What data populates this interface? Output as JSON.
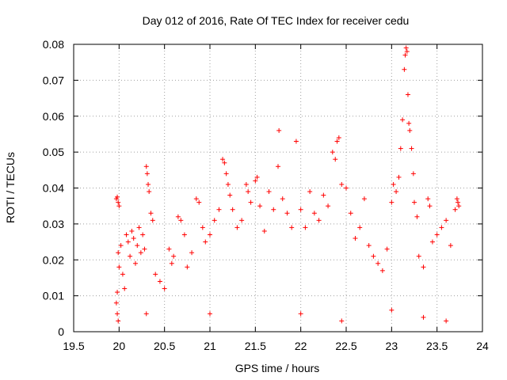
{
  "chart_data": {
    "type": "scatter",
    "title": "Day 012 of 2016, Rate Of TEC Index for receiver cedu",
    "xlabel": "GPS time / hours",
    "ylabel": "ROTI / TECUs",
    "xlim": [
      19.5,
      24
    ],
    "ylim": [
      0,
      0.08
    ],
    "xticks": [
      "19.5",
      "20",
      "20.5",
      "21",
      "21.5",
      "22",
      "22.5",
      "23",
      "23.5",
      "24"
    ],
    "yticks": [
      "0",
      "0.01",
      "0.02",
      "0.03",
      "0.04",
      "0.05",
      "0.06",
      "0.07",
      "0.08"
    ],
    "grid": true,
    "marker": "+",
    "color": "#ff0000",
    "series": [
      {
        "name": "ROTI",
        "points": [
          [
            19.97,
            0.037
          ],
          [
            19.98,
            0.0375
          ],
          [
            19.99,
            0.036
          ],
          [
            20.0,
            0.035
          ],
          [
            19.99,
            0.022
          ],
          [
            20.0,
            0.018
          ],
          [
            19.98,
            0.011
          ],
          [
            19.97,
            0.008
          ],
          [
            19.98,
            0.005
          ],
          [
            19.99,
            0.003
          ],
          [
            20.02,
            0.024
          ],
          [
            20.04,
            0.016
          ],
          [
            20.06,
            0.012
          ],
          [
            20.08,
            0.027
          ],
          [
            20.1,
            0.025
          ],
          [
            20.12,
            0.021
          ],
          [
            20.14,
            0.028
          ],
          [
            20.16,
            0.026
          ],
          [
            20.18,
            0.019
          ],
          [
            20.2,
            0.024
          ],
          [
            20.22,
            0.029
          ],
          [
            20.24,
            0.022
          ],
          [
            20.26,
            0.027
          ],
          [
            20.28,
            0.023
          ],
          [
            20.3,
            0.046
          ],
          [
            20.31,
            0.044
          ],
          [
            20.32,
            0.041
          ],
          [
            20.33,
            0.039
          ],
          [
            20.35,
            0.033
          ],
          [
            20.37,
            0.031
          ],
          [
            20.4,
            0.016
          ],
          [
            20.45,
            0.014
          ],
          [
            20.5,
            0.012
          ],
          [
            20.55,
            0.023
          ],
          [
            20.58,
            0.019
          ],
          [
            20.6,
            0.021
          ],
          [
            20.65,
            0.032
          ],
          [
            20.68,
            0.031
          ],
          [
            20.72,
            0.027
          ],
          [
            20.75,
            0.018
          ],
          [
            20.8,
            0.022
          ],
          [
            20.85,
            0.037
          ],
          [
            20.88,
            0.036
          ],
          [
            20.92,
            0.029
          ],
          [
            20.95,
            0.025
          ],
          [
            21.0,
            0.027
          ],
          [
            21.05,
            0.031
          ],
          [
            21.1,
            0.034
          ],
          [
            21.14,
            0.048
          ],
          [
            21.16,
            0.047
          ],
          [
            21.18,
            0.044
          ],
          [
            21.2,
            0.041
          ],
          [
            21.22,
            0.038
          ],
          [
            21.25,
            0.034
          ],
          [
            21.3,
            0.029
          ],
          [
            21.35,
            0.031
          ],
          [
            21.4,
            0.041
          ],
          [
            21.42,
            0.039
          ],
          [
            21.45,
            0.036
          ],
          [
            21.5,
            0.042
          ],
          [
            21.52,
            0.043
          ],
          [
            21.55,
            0.035
          ],
          [
            21.6,
            0.028
          ],
          [
            21.65,
            0.039
          ],
          [
            21.7,
            0.034
          ],
          [
            21.75,
            0.046
          ],
          [
            21.76,
            0.056
          ],
          [
            21.8,
            0.037
          ],
          [
            21.85,
            0.033
          ],
          [
            21.9,
            0.029
          ],
          [
            21.95,
            0.053
          ],
          [
            22.0,
            0.034
          ],
          [
            22.05,
            0.029
          ],
          [
            22.1,
            0.039
          ],
          [
            22.15,
            0.033
          ],
          [
            22.2,
            0.031
          ],
          [
            22.25,
            0.038
          ],
          [
            22.3,
            0.035
          ],
          [
            22.35,
            0.05
          ],
          [
            22.38,
            0.048
          ],
          [
            22.4,
            0.053
          ],
          [
            22.42,
            0.054
          ],
          [
            22.45,
            0.041
          ],
          [
            22.5,
            0.04
          ],
          [
            22.55,
            0.033
          ],
          [
            22.6,
            0.026
          ],
          [
            22.65,
            0.029
          ],
          [
            22.7,
            0.037
          ],
          [
            22.75,
            0.024
          ],
          [
            22.8,
            0.021
          ],
          [
            22.85,
            0.019
          ],
          [
            22.9,
            0.017
          ],
          [
            22.95,
            0.023
          ],
          [
            23.0,
            0.036
          ],
          [
            23.02,
            0.041
          ],
          [
            23.05,
            0.039
          ],
          [
            23.08,
            0.043
          ],
          [
            23.1,
            0.051
          ],
          [
            23.12,
            0.059
          ],
          [
            23.14,
            0.073
          ],
          [
            23.15,
            0.077
          ],
          [
            23.16,
            0.079
          ],
          [
            23.17,
            0.078
          ],
          [
            23.18,
            0.066
          ],
          [
            23.19,
            0.058
          ],
          [
            23.2,
            0.056
          ],
          [
            23.22,
            0.051
          ],
          [
            23.24,
            0.044
          ],
          [
            23.25,
            0.036
          ],
          [
            23.28,
            0.032
          ],
          [
            23.3,
            0.021
          ],
          [
            23.35,
            0.018
          ],
          [
            23.4,
            0.037
          ],
          [
            23.42,
            0.035
          ],
          [
            23.45,
            0.025
          ],
          [
            23.5,
            0.027
          ],
          [
            23.55,
            0.029
          ],
          [
            23.6,
            0.031
          ],
          [
            23.65,
            0.024
          ],
          [
            23.7,
            0.034
          ],
          [
            23.72,
            0.037
          ],
          [
            23.73,
            0.036
          ],
          [
            23.74,
            0.035
          ],
          [
            22.45,
            0.003
          ],
          [
            23.6,
            0.003
          ],
          [
            23.35,
            0.004
          ],
          [
            20.3,
            0.005
          ],
          [
            21.0,
            0.005
          ],
          [
            22.0,
            0.005
          ],
          [
            23.0,
            0.006
          ]
        ]
      }
    ]
  }
}
